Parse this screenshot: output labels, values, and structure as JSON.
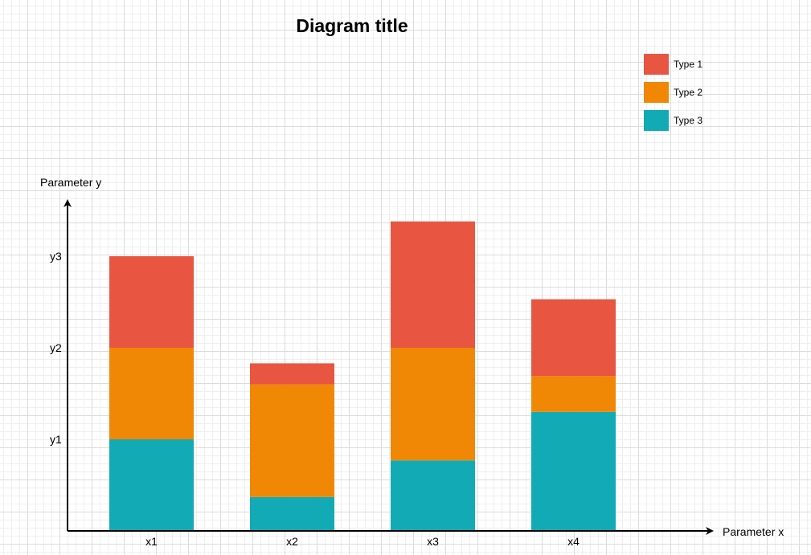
{
  "chart_data": {
    "type": "bar",
    "stacked": true,
    "title": "Diagram title",
    "xlabel": "Parameter x",
    "ylabel": "Parameter y",
    "categories": [
      "x1",
      "x2",
      "x3",
      "x4"
    ],
    "y_ticks": [
      {
        "label": "y1",
        "value": 1
      },
      {
        "label": "y2",
        "value": 2
      },
      {
        "label": "y3",
        "value": 3
      }
    ],
    "ylim": [
      0,
      3.7
    ],
    "series": [
      {
        "name": "Type 3",
        "color": "#12AAB5",
        "values": [
          1.0,
          0.37,
          0.77,
          1.3
        ]
      },
      {
        "name": "Type 2",
        "color": "#F08705",
        "values": [
          1.0,
          1.23,
          1.23,
          0.39
        ]
      },
      {
        "name": "Type 1",
        "color": "#E85642",
        "values": [
          1.0,
          0.23,
          1.38,
          0.84
        ]
      }
    ],
    "legend_order": [
      "Type 1",
      "Type 2",
      "Type 3"
    ],
    "legend_position": "top-right",
    "grid": true
  }
}
